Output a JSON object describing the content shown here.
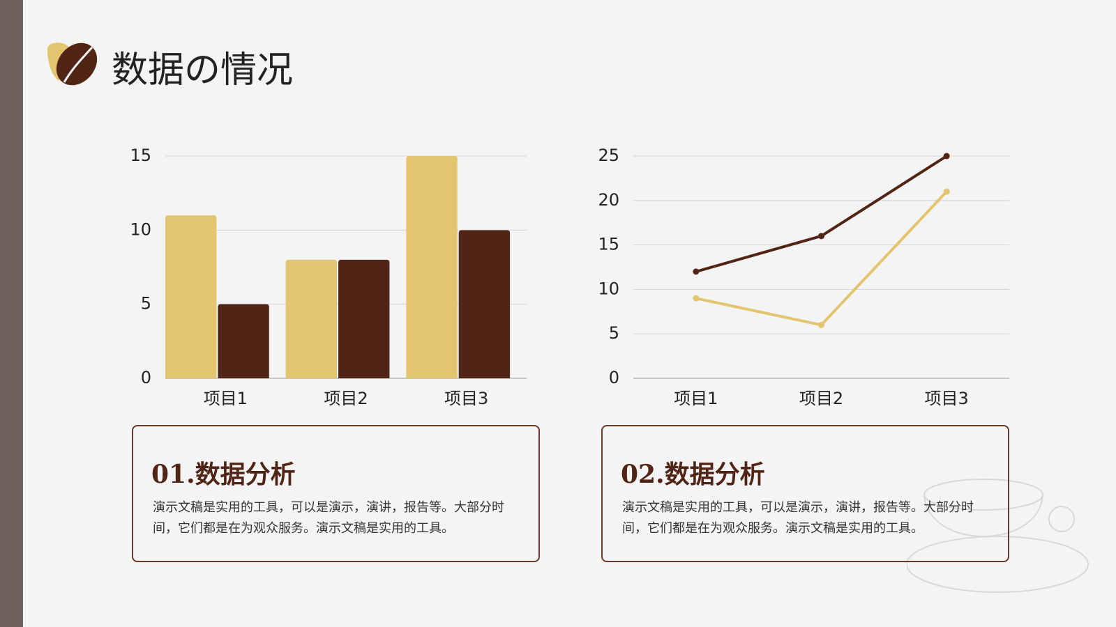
{
  "header": {
    "title": "数据の情况"
  },
  "chart_data": [
    {
      "type": "bar",
      "categories": [
        "项目1",
        "项目2",
        "项目3"
      ],
      "series": [
        {
          "color": "#e3c46f",
          "values": [
            11,
            8,
            15
          ]
        },
        {
          "color": "#512515",
          "values": [
            5,
            8,
            10
          ]
        }
      ],
      "ylim": [
        0,
        15
      ],
      "yticks": [
        0,
        5,
        10,
        15
      ],
      "grid": true
    },
    {
      "type": "line",
      "categories": [
        "项目1",
        "项目2",
        "项目3"
      ],
      "series": [
        {
          "color": "#512515",
          "values": [
            12,
            16,
            25
          ]
        },
        {
          "color": "#e3c46f",
          "values": [
            9,
            6,
            21
          ]
        }
      ],
      "ylim": [
        0,
        25
      ],
      "yticks": [
        0,
        5,
        10,
        15,
        20,
        25
      ],
      "grid": true
    }
  ],
  "cards": [
    {
      "title": "01.数据分析",
      "body": "演示文稿是实用的工具，可以是演示，演讲，报告等。大部分时间，它们都是在为观众服务。演示文稿是实用的工具。"
    },
    {
      "title": "02.数据分析",
      "body": "演示文稿是实用的工具，可以是演示，演讲，报告等。大部分时间，它们都是在为观众服务。演示文稿是实用的工具。"
    }
  ]
}
